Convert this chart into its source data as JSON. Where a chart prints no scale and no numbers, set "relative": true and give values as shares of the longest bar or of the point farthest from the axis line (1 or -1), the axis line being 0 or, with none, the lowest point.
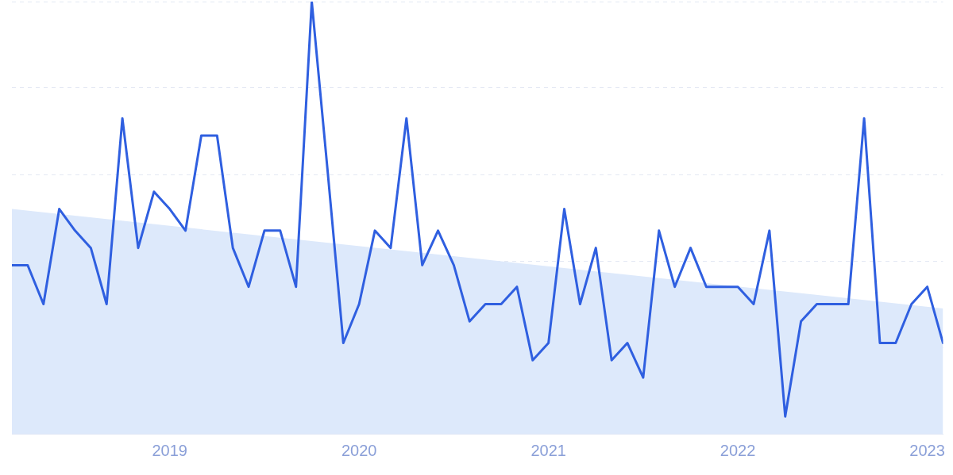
{
  "chart_data": {
    "type": "line",
    "relative": true,
    "grid": "y",
    "line_style": "solid",
    "marker": "none",
    "x": [
      "2018-03",
      "2018-04",
      "2018-05",
      "2018-06",
      "2018-07",
      "2018-08",
      "2018-09",
      "2018-10",
      "2018-11",
      "2018-12",
      "2019-01",
      "2019-02",
      "2019-03",
      "2019-04",
      "2019-05",
      "2019-06",
      "2019-07",
      "2019-08",
      "2019-09",
      "2019-10",
      "2019-11",
      "2019-12",
      "2020-01",
      "2020-02",
      "2020-03",
      "2020-04",
      "2020-05",
      "2020-06",
      "2020-07",
      "2020-08",
      "2020-09",
      "2020-10",
      "2020-11",
      "2020-12",
      "2021-01",
      "2021-02",
      "2021-03",
      "2021-04",
      "2021-05",
      "2021-06",
      "2021-07",
      "2021-08",
      "2021-09",
      "2021-10",
      "2021-11",
      "2021-12",
      "2022-01",
      "2022-02",
      "2022-03",
      "2022-04",
      "2022-05",
      "2022-06",
      "2022-07",
      "2022-08",
      "2022-09",
      "2022-10",
      "2022-11",
      "2022-12",
      "2023-01",
      "2023-02"
    ],
    "xlim": [
      "2018-03",
      "2023-02"
    ],
    "xticks": [
      {
        "value": "2019-01",
        "label": "2019"
      },
      {
        "value": "2020-01",
        "label": "2020"
      },
      {
        "value": "2021-01",
        "label": "2021"
      },
      {
        "value": "2022-01",
        "label": "2022"
      },
      {
        "value": "2023-01",
        "label": "2023"
      }
    ],
    "series": [
      {
        "type": "area",
        "color": "#dde9fb",
        "x": [
          "2018-03",
          "2023-02"
        ],
        "values": [
          0.52,
          0.29
        ]
      },
      {
        "color": "#2f5fe0",
        "values": [
          0.39,
          0.39,
          0.3,
          0.52,
          0.47,
          0.43,
          0.3,
          0.73,
          0.43,
          0.56,
          0.52,
          0.47,
          0.69,
          0.69,
          0.43,
          0.34,
          0.47,
          0.47,
          0.34,
          1,
          0.61,
          0.21,
          0.3,
          0.47,
          0.43,
          0.73,
          0.39,
          0.47,
          0.39,
          0.26,
          0.3,
          0.3,
          0.34,
          0.17,
          0.21,
          0.52,
          0.3,
          0.43,
          0.17,
          0.21,
          0.13,
          0.47,
          0.34,
          0.43,
          0.34,
          0.34,
          0.34,
          0.3,
          0.47,
          0.04,
          0.26,
          0.3,
          0.3,
          0.3,
          0.73,
          0.21,
          0.21,
          0.3,
          0.34,
          0.21
        ]
      }
    ]
  }
}
